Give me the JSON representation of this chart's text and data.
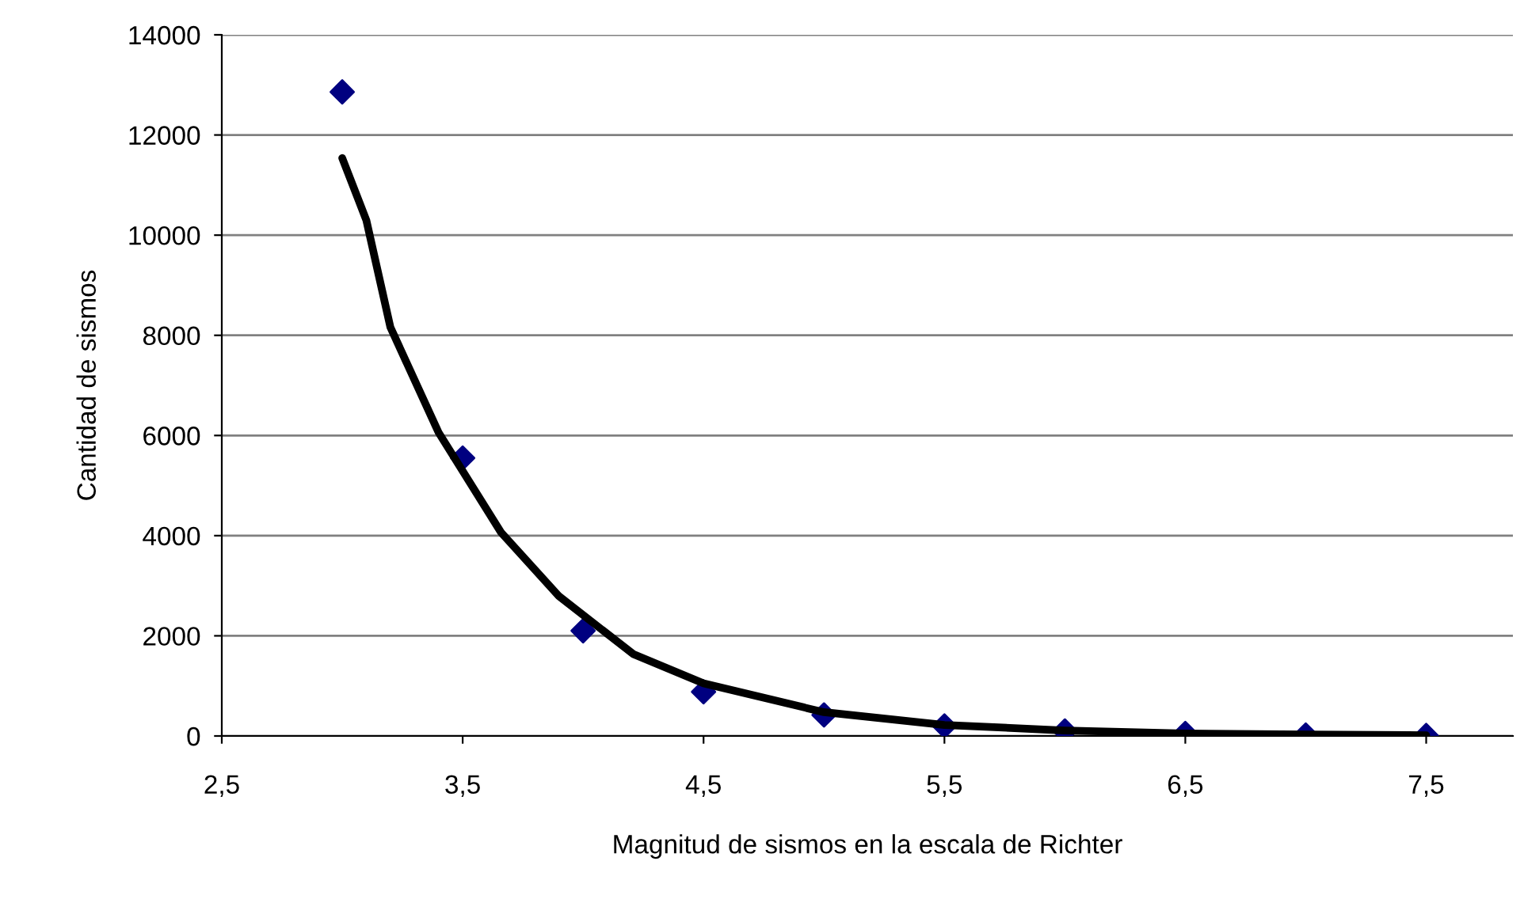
{
  "chart_data": {
    "type": "scatter",
    "xlabel": "Magnitud de sismos en la escala de Richter",
    "ylabel": "Cantidad de sismos",
    "xlim": [
      2.5,
      7.86
    ],
    "ylim": [
      0,
      14000
    ],
    "xticks": [
      {
        "value": 2.5,
        "label": "2,5"
      },
      {
        "value": 3.5,
        "label": "3,5"
      },
      {
        "value": 4.5,
        "label": "4,5"
      },
      {
        "value": 5.5,
        "label": "5,5"
      },
      {
        "value": 6.5,
        "label": "6,5"
      },
      {
        "value": 7.5,
        "label": "7,5"
      }
    ],
    "yticks": [
      0,
      2000,
      4000,
      6000,
      8000,
      10000,
      12000,
      14000
    ],
    "grid": "y",
    "marker": "diamond",
    "series": [
      {
        "color": "#000080",
        "x": [
          3.0,
          3.5,
          4.0,
          4.5,
          5.0,
          5.5,
          6.0,
          6.5,
          7.0,
          7.5
        ],
        "values": [
          12860,
          5550,
          2100,
          880,
          420,
          200,
          100,
          50,
          20,
          10
        ]
      },
      {
        "type": "line",
        "color": "#000000",
        "line_style": "solid",
        "marker": "none",
        "x": [
          3.0,
          3.1,
          3.2,
          3.4,
          3.66,
          3.9,
          4.21,
          4.5,
          5.0,
          5.5,
          6.0,
          6.5,
          7.0,
          7.5
        ],
        "values": [
          11540,
          10300,
          8160,
          6060,
          4060,
          2790,
          1630,
          1050,
          475,
          220,
          110,
          50,
          30,
          15
        ]
      }
    ]
  }
}
